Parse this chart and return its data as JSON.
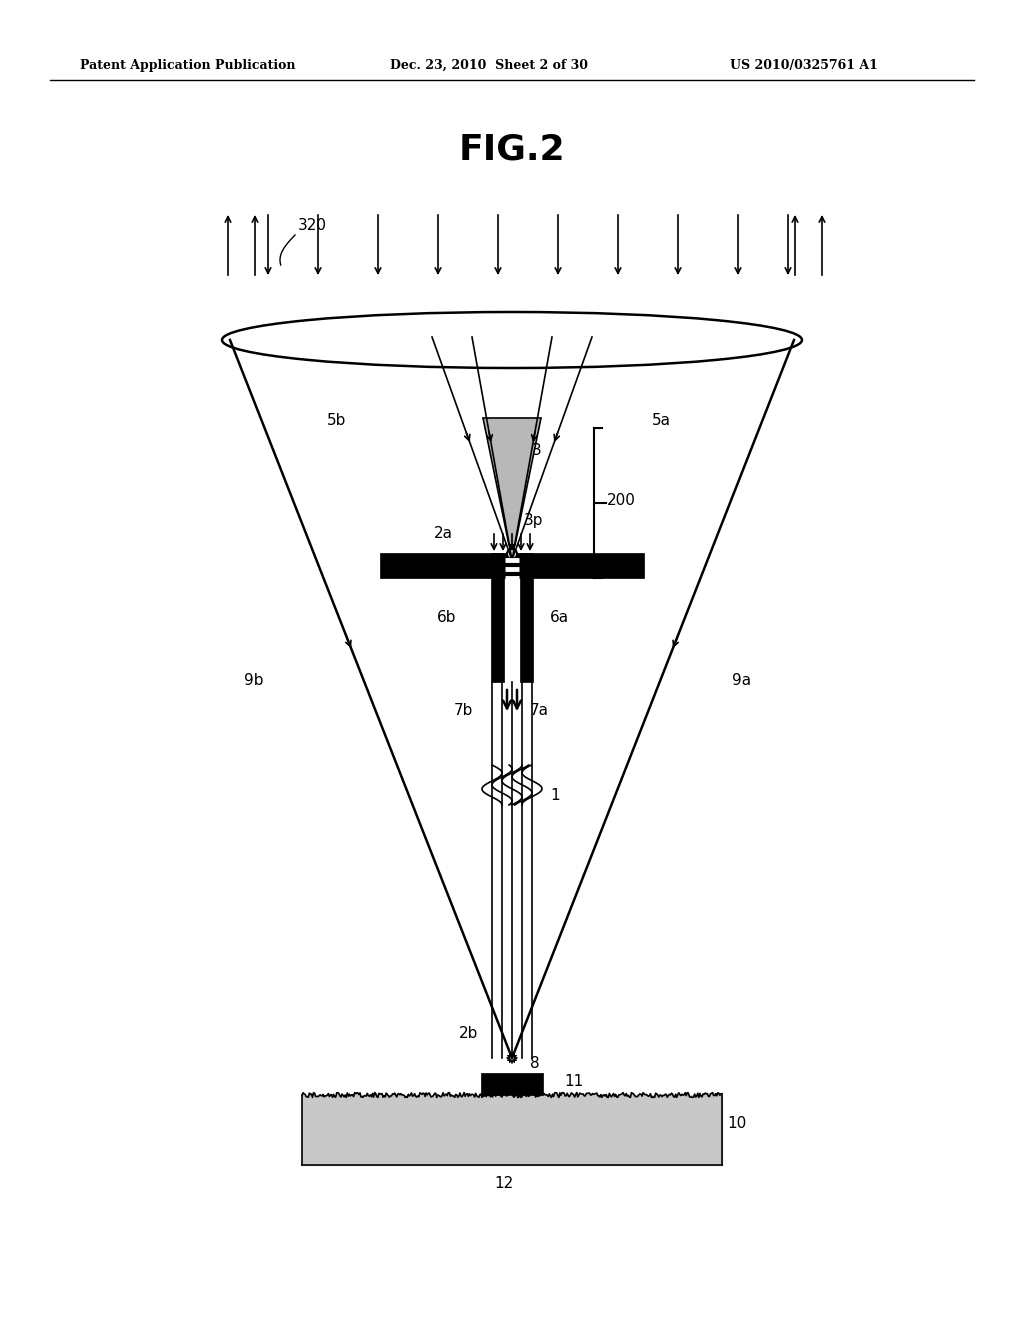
{
  "title": "FIG.2",
  "header_left": "Patent Application Publication",
  "header_mid": "Dec. 23, 2010  Sheet 2 of 30",
  "header_right": "US 2010/0325761 A1",
  "bg_color": "#ffffff",
  "label_320": "320",
  "label_5b": "5b",
  "label_5a": "5a",
  "label_3": "3",
  "label_3p": "3p",
  "label_200": "200",
  "label_2a": "2a",
  "label_6b": "6b",
  "label_6a": "6a",
  "label_9b": "9b",
  "label_9a": "9a",
  "label_7b": "7b",
  "label_7a": "7a",
  "label_1": "1",
  "label_2b": "2b",
  "label_8": "8",
  "label_10": "10",
  "label_11": "11",
  "label_12": "12"
}
